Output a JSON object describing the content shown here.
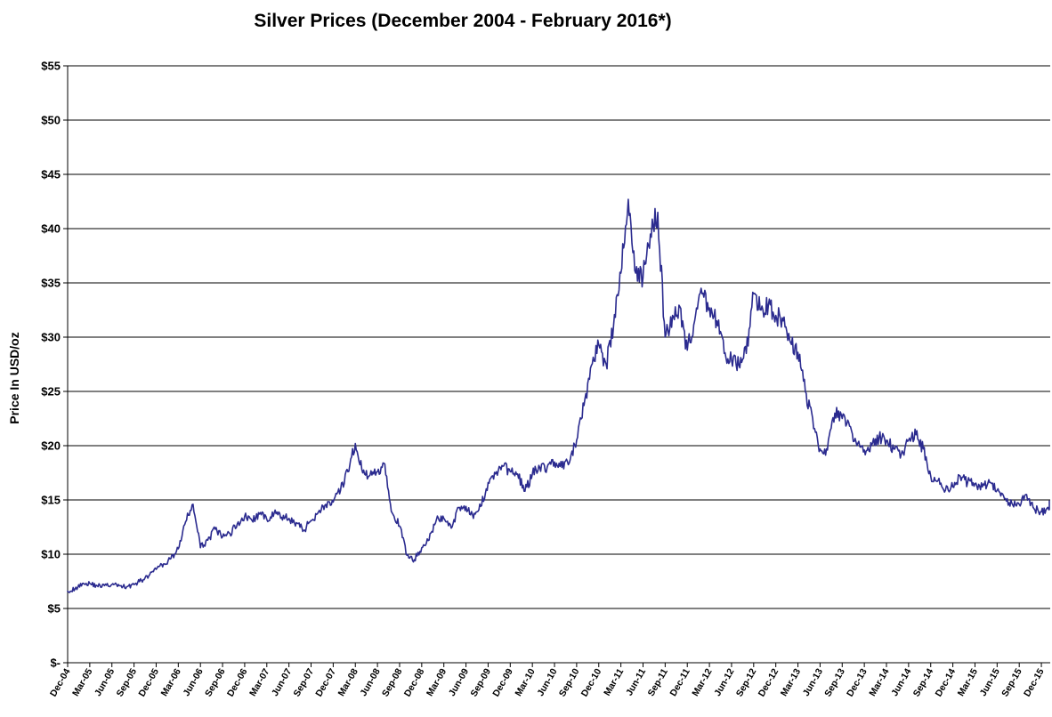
{
  "chart_data": {
    "type": "line",
    "title": "Silver Prices (December 2004 - February 2016*)",
    "xlabel": "",
    "ylabel": "Price In USD/oz",
    "ylim": [
      0,
      55
    ],
    "yticks": [
      0,
      5,
      10,
      15,
      20,
      25,
      30,
      35,
      40,
      45,
      50,
      55
    ],
    "ytick_labels": [
      "$-",
      "$5",
      "$10",
      "$15",
      "$20",
      "$25",
      "$30",
      "$35",
      "$40",
      "$45",
      "$50",
      "$55"
    ],
    "grid": true,
    "legend": "none",
    "colors": {
      "series": "#2b2b8f",
      "grid": "#000000"
    },
    "x_ticks": [
      "Dec-04",
      "Mar-05",
      "Jun-05",
      "Sep-05",
      "Dec-05",
      "Mar-06",
      "Jun-06",
      "Sep-06",
      "Dec-06",
      "Mar-07",
      "Jun-07",
      "Sep-07",
      "Dec-07",
      "Mar-08",
      "Jun-08",
      "Sep-08",
      "Dec-08",
      "Mar-09",
      "Jun-09",
      "Sep-09",
      "Dec-09",
      "Mar-10",
      "Jun-10",
      "Sep-10",
      "Dec-10",
      "Mar-11",
      "Jun-11",
      "Sep-11",
      "Dec-11",
      "Mar-12",
      "Jun-12",
      "Sep-12",
      "Dec-12",
      "Mar-13",
      "Jun-13",
      "Sep-13",
      "Dec-13",
      "Mar-14",
      "Jun-14",
      "Sep-14",
      "Dec-14",
      "Mar-15",
      "Jun-15",
      "Sep-15",
      "Dec-15"
    ],
    "series": [
      {
        "x": [
          "2004-12",
          "2005-01",
          "2005-02",
          "2005-03",
          "2005-04",
          "2005-05",
          "2005-06",
          "2005-07",
          "2005-08",
          "2005-09",
          "2005-10",
          "2005-11",
          "2005-12",
          "2006-01",
          "2006-02",
          "2006-03",
          "2006-04",
          "2006-05",
          "2006-06",
          "2006-07",
          "2006-08",
          "2006-09",
          "2006-10",
          "2006-11",
          "2006-12",
          "2007-01",
          "2007-02",
          "2007-03",
          "2007-04",
          "2007-05",
          "2007-06",
          "2007-07",
          "2007-08",
          "2007-09",
          "2007-10",
          "2007-11",
          "2007-12",
          "2008-01",
          "2008-02",
          "2008-03",
          "2008-04",
          "2008-05",
          "2008-06",
          "2008-07",
          "2008-08",
          "2008-09",
          "2008-10",
          "2008-11",
          "2008-12",
          "2009-01",
          "2009-02",
          "2009-03",
          "2009-04",
          "2009-05",
          "2009-06",
          "2009-07",
          "2009-08",
          "2009-09",
          "2009-10",
          "2009-11",
          "2009-12",
          "2010-01",
          "2010-02",
          "2010-03",
          "2010-04",
          "2010-05",
          "2010-06",
          "2010-07",
          "2010-08",
          "2010-09",
          "2010-10",
          "2010-11",
          "2010-12",
          "2011-01",
          "2011-02",
          "2011-03",
          "2011-04",
          "2011-05",
          "2011-06",
          "2011-07",
          "2011-08",
          "2011-09",
          "2011-10",
          "2011-11",
          "2011-12",
          "2012-01",
          "2012-02",
          "2012-03",
          "2012-04",
          "2012-05",
          "2012-06",
          "2012-07",
          "2012-08",
          "2012-09",
          "2012-10",
          "2012-11",
          "2012-12",
          "2013-01",
          "2013-02",
          "2013-03",
          "2013-04",
          "2013-05",
          "2013-06",
          "2013-07",
          "2013-08",
          "2013-09",
          "2013-10",
          "2013-11",
          "2013-12",
          "2014-01",
          "2014-02",
          "2014-03",
          "2014-04",
          "2014-05",
          "2014-06",
          "2014-07",
          "2014-08",
          "2014-09",
          "2014-10",
          "2014-11",
          "2014-12",
          "2015-01",
          "2015-02",
          "2015-03",
          "2015-04",
          "2015-05",
          "2015-06",
          "2015-07",
          "2015-08",
          "2015-09",
          "2015-10",
          "2015-11",
          "2015-12",
          "2016-01",
          "2016-02"
        ],
        "values": [
          6.6,
          6.8,
          7.3,
          7.3,
          7.1,
          7.1,
          7.2,
          7.1,
          7.0,
          7.2,
          7.6,
          8.0,
          8.6,
          9.1,
          9.6,
          10.5,
          13.0,
          14.6,
          10.6,
          11.3,
          12.3,
          11.6,
          11.9,
          12.8,
          13.5,
          13.1,
          13.7,
          13.2,
          13.8,
          13.4,
          13.3,
          12.9,
          12.2,
          13.1,
          13.9,
          14.6,
          14.8,
          15.9,
          17.6,
          20.2,
          17.5,
          17.3,
          17.6,
          18.3,
          13.8,
          12.6,
          9.9,
          9.5,
          10.6,
          11.3,
          13.2,
          13.3,
          12.4,
          14.3,
          14.4,
          13.3,
          14.4,
          16.6,
          17.4,
          18.1,
          17.6,
          17.4,
          15.8,
          17.4,
          18.0,
          18.0,
          18.5,
          18.0,
          18.4,
          20.5,
          23.7,
          27.4,
          29.3,
          27.5,
          31.0,
          35.9,
          42.7,
          35.9,
          35.5,
          39.5,
          41.5,
          30.0,
          32.0,
          32.8,
          28.8,
          31.5,
          34.0,
          32.7,
          31.5,
          28.5,
          27.9,
          27.4,
          28.5,
          34.0,
          32.5,
          33.0,
          32.0,
          31.5,
          29.5,
          28.6,
          25.0,
          22.5,
          19.7,
          19.6,
          23.0,
          22.5,
          21.8,
          20.0,
          19.6,
          20.0,
          20.8,
          20.5,
          19.7,
          19.2,
          20.5,
          21.0,
          19.7,
          17.2,
          16.8,
          15.9,
          16.2,
          17.2,
          16.6,
          16.5,
          16.2,
          16.6,
          15.9,
          15.1,
          14.7,
          14.6,
          15.5,
          14.2,
          13.9,
          14.1,
          14.9
        ]
      }
    ]
  }
}
